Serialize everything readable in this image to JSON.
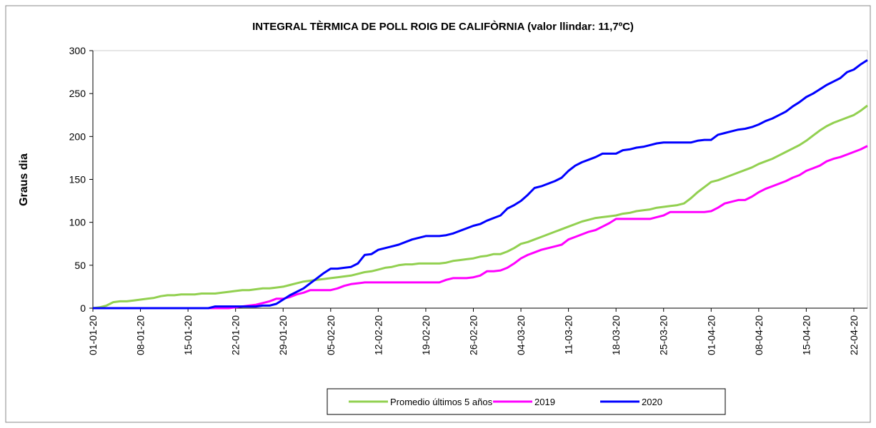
{
  "chart_data": {
    "type": "line",
    "title": "INTEGRAL TÈRMICA DE POLL ROIG DE CALIFÒRNIA (valor llindar: 11,7ºC)",
    "y_label": "Graus dia",
    "categories": [
      "01-01-20",
      null,
      null,
      null,
      null,
      null,
      null,
      "08-01-20",
      null,
      null,
      null,
      null,
      null,
      null,
      "15-01-20",
      null,
      null,
      null,
      null,
      null,
      null,
      "22-01-20",
      null,
      null,
      null,
      null,
      null,
      null,
      "29-01-20",
      null,
      null,
      null,
      null,
      null,
      null,
      "05-02-20",
      null,
      null,
      null,
      null,
      null,
      null,
      "12-02-20",
      null,
      null,
      null,
      null,
      null,
      null,
      "19-02-20",
      null,
      null,
      null,
      null,
      null,
      null,
      "26-02-20",
      null,
      null,
      null,
      null,
      null,
      null,
      "04-03-20",
      null,
      null,
      null,
      null,
      null,
      null,
      "11-03-20",
      null,
      null,
      null,
      null,
      null,
      null,
      "18-03-20",
      null,
      null,
      null,
      null,
      null,
      null,
      "25-03-20",
      null,
      null,
      null,
      null,
      null,
      null,
      "01-04-20",
      null,
      null,
      null,
      null,
      null,
      null,
      "08-04-20",
      null,
      null,
      null,
      null,
      null,
      null,
      "15-04-20",
      null,
      null,
      null,
      null,
      null,
      null,
      "22-04-20",
      null,
      null
    ],
    "series": [
      {
        "name": "Promedio últimos 5 años",
        "color": "#92d050",
        "values": [
          0,
          1,
          3,
          7,
          8,
          8,
          9,
          10,
          11,
          12,
          14,
          15,
          15,
          16,
          16,
          16,
          17,
          17,
          17,
          18,
          19,
          20,
          21,
          21,
          22,
          23,
          23,
          24,
          25,
          27,
          29,
          31,
          32,
          33,
          34,
          35,
          36,
          37,
          38,
          40,
          42,
          43,
          45,
          47,
          48,
          50,
          51,
          51,
          52,
          52,
          52,
          52,
          53,
          55,
          56,
          57,
          58,
          60,
          61,
          63,
          63,
          66,
          70,
          75,
          77,
          80,
          83,
          86,
          89,
          92,
          95,
          98,
          101,
          103,
          105,
          106,
          107,
          108,
          110,
          111,
          113,
          114,
          115,
          117,
          118,
          119,
          120,
          122,
          128,
          135,
          141,
          147,
          149,
          152,
          155,
          158,
          161,
          164,
          168,
          171,
          174,
          178,
          182,
          186,
          190,
          195,
          201,
          207,
          212,
          216,
          219,
          222,
          225,
          230,
          236
        ]
      },
      {
        "name": "2019",
        "color": "#ff00ff",
        "values": [
          0,
          0,
          0,
          0,
          0,
          0,
          0,
          0,
          0,
          0,
          0,
          0,
          0,
          0,
          0,
          0,
          0,
          0,
          0,
          0,
          0,
          1,
          2,
          3,
          4,
          6,
          8,
          11,
          11,
          13,
          16,
          18,
          21,
          21,
          21,
          21,
          23,
          26,
          28,
          29,
          30,
          30,
          30,
          30,
          30,
          30,
          30,
          30,
          30,
          30,
          30,
          30,
          33,
          35,
          35,
          35,
          36,
          38,
          43,
          43,
          44,
          47,
          52,
          58,
          62,
          65,
          68,
          70,
          72,
          74,
          80,
          83,
          86,
          89,
          91,
          95,
          99,
          104,
          104,
          104,
          104,
          104,
          104,
          106,
          108,
          112,
          112,
          112,
          112,
          112,
          112,
          113,
          117,
          122,
          124,
          126,
          126,
          130,
          135,
          139,
          142,
          145,
          148,
          152,
          155,
          160,
          163,
          166,
          171,
          174,
          176,
          179,
          182,
          185,
          189
        ]
      },
      {
        "name": "2020",
        "color": "#0000ff",
        "values": [
          0,
          0,
          0,
          0,
          0,
          0,
          0,
          0,
          0,
          0,
          0,
          0,
          0,
          0,
          0,
          0,
          0,
          0,
          2,
          2,
          2,
          2,
          2,
          2,
          2,
          3,
          3,
          5,
          10,
          15,
          19,
          23,
          29,
          35,
          41,
          46,
          46,
          47,
          48,
          52,
          62,
          63,
          68,
          70,
          72,
          74,
          77,
          80,
          82,
          84,
          84,
          84,
          85,
          87,
          90,
          93,
          96,
          98,
          102,
          105,
          108,
          116,
          120,
          125,
          132,
          140,
          142,
          145,
          148,
          152,
          160,
          166,
          170,
          173,
          176,
          180,
          180,
          180,
          184,
          185,
          187,
          188,
          190,
          192,
          193,
          193,
          193,
          193,
          193,
          195,
          196,
          196,
          202,
          204,
          206,
          208,
          209,
          211,
          214,
          218,
          221,
          225,
          229,
          235,
          240,
          246,
          250,
          255,
          260,
          264,
          268,
          275,
          278,
          284,
          289
        ]
      }
    ],
    "ylim": [
      0,
      300
    ],
    "yticks": [
      0,
      50,
      100,
      150,
      200,
      250,
      300
    ],
    "grid": false,
    "legend": "bottom"
  }
}
